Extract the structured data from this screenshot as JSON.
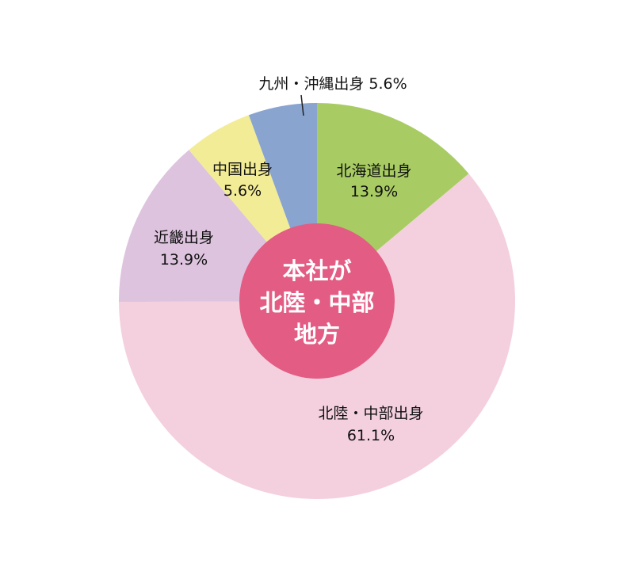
{
  "chart_data": {
    "type": "pie",
    "center_label": [
      "本社が",
      "北陸・中部",
      "地方"
    ],
    "center_color": "#E35C84",
    "slices": [
      {
        "name": "北海道出身",
        "value": 13.9,
        "value_label": "13.9%",
        "color": "#A8CC63"
      },
      {
        "name": "北陸・中部出身",
        "value": 61.1,
        "value_label": "61.1%",
        "color": "#F4D0DE"
      },
      {
        "name": "近畿出身",
        "value": 13.9,
        "value_label": "13.9%",
        "color": "#DDC3DE"
      },
      {
        "name": "中国出身",
        "value": 5.6,
        "value_label": "5.6%",
        "color": "#F3EC96"
      },
      {
        "name": "九州・沖縄出身",
        "value": 5.6,
        "value_label": "5.6%",
        "color": "#88A4CF"
      }
    ]
  }
}
